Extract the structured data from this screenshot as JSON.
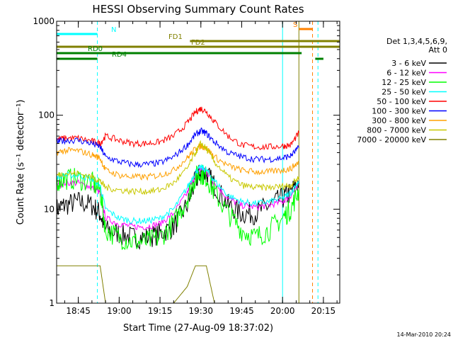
{
  "chart_data": {
    "type": "line",
    "title": "HESSI Observing Summary Count Rates",
    "xlabel": "Start Time (27-Aug-09 18:37:02)",
    "ylabel": "Count Rate (s⁻¹ detector⁻¹)",
    "yscale": "log",
    "ylim": [
      1,
      1000
    ],
    "xlim": [
      "18:37:02",
      "20:21:00"
    ],
    "x_ticks": [
      "18:45",
      "19:00",
      "19:15",
      "19:30",
      "19:45",
      "20:00",
      "20:15"
    ],
    "y_ticks": [
      "1",
      "10",
      "100",
      "1000"
    ],
    "legend_header": [
      "Det 1,3,4,5,6,9,",
      "Att 0"
    ],
    "legend_position": "right",
    "timestamp": "14-Mar-2010 20:24",
    "x": [
      "18:37",
      "18:40",
      "18:45",
      "18:50",
      "18:53",
      "18:55",
      "19:00",
      "19:05",
      "19:10",
      "19:15",
      "19:20",
      "19:25",
      "19:28",
      "19:30",
      "19:32",
      "19:35",
      "19:40",
      "19:45",
      "19:50",
      "19:55",
      "20:00",
      "20:03",
      "20:06"
    ],
    "series": [
      {
        "name": "3 - 6 keV",
        "color": "#000000",
        "values": [
          10,
          11,
          12,
          11,
          9,
          6,
          5.5,
          5,
          5,
          5.5,
          6.5,
          11,
          20,
          25,
          24,
          18,
          11,
          9,
          9,
          11,
          13,
          15,
          20
        ]
      },
      {
        "name": "6 - 12 keV",
        "color": "#ff00ff",
        "values": [
          18,
          19,
          19,
          17,
          15,
          8,
          7,
          6.5,
          6.5,
          7,
          9,
          15,
          23,
          27,
          25,
          19,
          13,
          11,
          10.5,
          11,
          12,
          14,
          18
        ]
      },
      {
        "name": "12 - 25 keV",
        "color": "#00ff00",
        "values": [
          20,
          21,
          21,
          19,
          16,
          6,
          5,
          4.5,
          4.5,
          5,
          7,
          13,
          22,
          24,
          22,
          15,
          9,
          6,
          5,
          6,
          8,
          10,
          16
        ]
      },
      {
        "name": "25 - 50 keV",
        "color": "#00ffff",
        "values": [
          22,
          23,
          23,
          21,
          18,
          10,
          8,
          7.5,
          7.5,
          8,
          10,
          17,
          25,
          28,
          26,
          20,
          14,
          12,
          11.5,
          12,
          13,
          15,
          20
        ]
      },
      {
        "name": "50 - 100 keV",
        "color": "#ff0000",
        "values": [
          55,
          57,
          57,
          53,
          50,
          60,
          54,
          50,
          50,
          52,
          60,
          82,
          108,
          118,
          110,
          85,
          60,
          48,
          46,
          46,
          47,
          48,
          65
        ]
      },
      {
        "name": "100 - 300 keV",
        "color": "#0000ff",
        "values": [
          52,
          54,
          54,
          50,
          46,
          36,
          32,
          30,
          30,
          31,
          36,
          48,
          62,
          68,
          64,
          52,
          40,
          36,
          34,
          34,
          35,
          37,
          45
        ]
      },
      {
        "name": "300 - 800 keV",
        "color": "#ffa000",
        "values": [
          40,
          42,
          42,
          38,
          35,
          26,
          23,
          22,
          22,
          23,
          26,
          35,
          44,
          47,
          45,
          36,
          29,
          26,
          25,
          25,
          26,
          27,
          32
        ]
      },
      {
        "name": "800 - 7000 keV",
        "color": "#c8c800",
        "values": [
          23,
          24,
          24,
          22,
          20,
          17,
          16,
          15.5,
          15.5,
          16,
          19,
          27,
          40,
          50,
          44,
          32,
          22,
          18,
          17,
          17,
          17.5,
          18,
          22
        ]
      },
      {
        "name": "7000 - 20000 keV",
        "color": "#808000",
        "values": [
          2.5,
          2.5,
          2.5,
          2.5,
          2.5,
          1,
          1,
          1,
          1,
          1,
          1,
          1.5,
          2.5,
          2.5,
          2.5,
          1,
          1,
          1,
          1,
          1,
          1,
          1,
          1
        ]
      }
    ],
    "flag_bars": [
      {
        "label": "N",
        "color": "#00ffff",
        "ranges": [
          [
            "18:37",
            "18:52"
          ]
        ]
      },
      {
        "label": "S",
        "color": "#ff8000",
        "ranges": [
          [
            "20:06",
            "20:11"
          ]
        ]
      },
      {
        "label": "FD1",
        "color": "#808000",
        "ranges": [
          [
            "19:26",
            "20:21"
          ]
        ]
      },
      {
        "label": "FD2",
        "color": "#808000",
        "ranges": [
          [
            "18:37",
            "20:21"
          ]
        ]
      },
      {
        "label": "RD0",
        "color": "#008000",
        "ranges": [
          [
            "18:37",
            "20:07"
          ]
        ]
      },
      {
        "label": "RD4",
        "color": "#008000",
        "ranges": [
          [
            "18:37",
            "18:52"
          ],
          [
            "20:12",
            "20:15"
          ]
        ]
      }
    ],
    "vertical_lines": [
      {
        "time": "18:37",
        "color": "#00ffff",
        "style": "solid"
      },
      {
        "time": "18:52",
        "color": "#00ffff",
        "style": "dashed"
      },
      {
        "time": "20:00",
        "color": "#00ffff",
        "style": "solid"
      },
      {
        "time": "20:06",
        "color": "#808000",
        "style": "solid"
      },
      {
        "time": "20:11",
        "color": "#ff8000",
        "style": "dashed"
      },
      {
        "time": "20:13",
        "color": "#00ffff",
        "style": "dashed"
      }
    ]
  }
}
